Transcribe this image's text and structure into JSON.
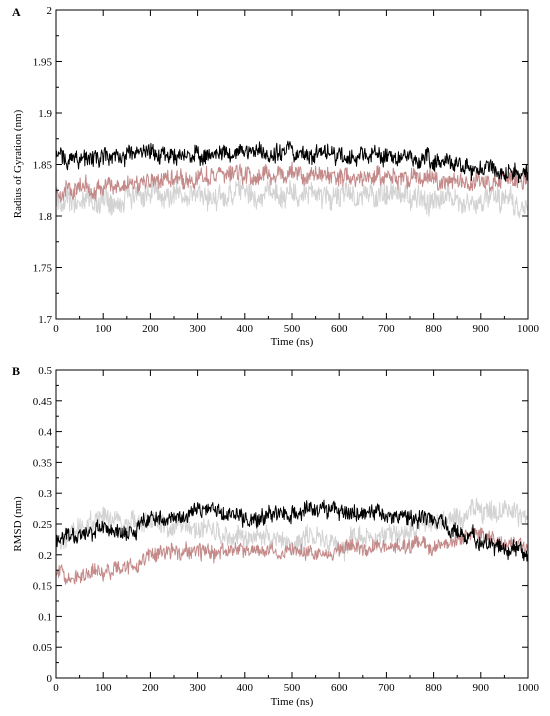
{
  "chart_data": [
    {
      "type": "line",
      "panel_label": "A",
      "xlabel": "Time (ns)",
      "ylabel": "Radius of Gyration (nm)",
      "xlim": [
        0,
        1000
      ],
      "ylim": [
        1.7,
        2
      ],
      "xticks": [
        0,
        100,
        200,
        300,
        400,
        500,
        600,
        700,
        800,
        900,
        1000
      ],
      "yticks": [
        1.7,
        1.75,
        1.8,
        1.85,
        1.9,
        1.95,
        2
      ],
      "ytick_labels": [
        "1.7",
        "1.75",
        "1.8",
        "1.85",
        "1.9",
        "1.95",
        "2"
      ],
      "grid": false,
      "series": [
        {
          "color": "#d3d3d3",
          "noise": 0.012,
          "x": [
            0,
            100,
            200,
            300,
            400,
            500,
            600,
            700,
            800,
            900,
            1000
          ],
          "y": [
            1.815,
            1.815,
            1.822,
            1.82,
            1.82,
            1.822,
            1.818,
            1.82,
            1.818,
            1.816,
            1.81
          ]
        },
        {
          "color": "#c48a8a",
          "noise": 0.009,
          "x": [
            0,
            100,
            200,
            300,
            400,
            500,
            600,
            700,
            800,
            900,
            1000
          ],
          "y": [
            1.825,
            1.828,
            1.835,
            1.838,
            1.84,
            1.84,
            1.838,
            1.838,
            1.835,
            1.832,
            1.835
          ]
        },
        {
          "color": "#000000",
          "noise": 0.009,
          "x": [
            0,
            100,
            200,
            300,
            400,
            500,
            600,
            700,
            800,
            900,
            1000
          ],
          "y": [
            1.858,
            1.855,
            1.86,
            1.86,
            1.862,
            1.862,
            1.86,
            1.858,
            1.855,
            1.845,
            1.842
          ]
        }
      ]
    },
    {
      "type": "line",
      "panel_label": "B",
      "xlabel": "Time (ns)",
      "ylabel": "RMSD (nm)",
      "xlim": [
        0,
        1000
      ],
      "ylim": [
        0,
        0.5
      ],
      "xticks": [
        0,
        100,
        200,
        300,
        400,
        500,
        600,
        700,
        800,
        900,
        1000
      ],
      "yticks": [
        0,
        0.05,
        0.1,
        0.15,
        0.2,
        0.25,
        0.3,
        0.35,
        0.4,
        0.45,
        0.5
      ],
      "ytick_labels": [
        "0",
        "0.05",
        "0.1",
        "0.15",
        "0.2",
        "0.25",
        "0.3",
        "0.35",
        "0.4",
        "0.45",
        "0.5"
      ],
      "grid": false,
      "series": [
        {
          "color": "#d3d3d3",
          "noise": 0.018,
          "x": [
            0,
            50,
            100,
            150,
            200,
            300,
            400,
            500,
            600,
            700,
            800,
            850,
            900,
            950,
            1000
          ],
          "y": [
            0.22,
            0.25,
            0.26,
            0.25,
            0.25,
            0.24,
            0.23,
            0.22,
            0.22,
            0.23,
            0.25,
            0.26,
            0.27,
            0.27,
            0.27
          ]
        },
        {
          "color": "#c48a8a",
          "noise": 0.013,
          "x": [
            0,
            50,
            100,
            150,
            170,
            200,
            300,
            400,
            500,
            600,
            700,
            800,
            850,
            900,
            950,
            1000
          ],
          "y": [
            0.17,
            0.17,
            0.175,
            0.18,
            0.18,
            0.2,
            0.205,
            0.205,
            0.205,
            0.21,
            0.21,
            0.215,
            0.225,
            0.235,
            0.22,
            0.21
          ]
        },
        {
          "color": "#000000",
          "noise": 0.014,
          "x": [
            0,
            50,
            100,
            150,
            200,
            300,
            400,
            500,
            550,
            600,
            700,
            800,
            850,
            900,
            950,
            1000
          ],
          "y": [
            0.23,
            0.23,
            0.24,
            0.235,
            0.255,
            0.27,
            0.26,
            0.27,
            0.275,
            0.27,
            0.265,
            0.255,
            0.24,
            0.225,
            0.21,
            0.205
          ]
        }
      ]
    }
  ]
}
